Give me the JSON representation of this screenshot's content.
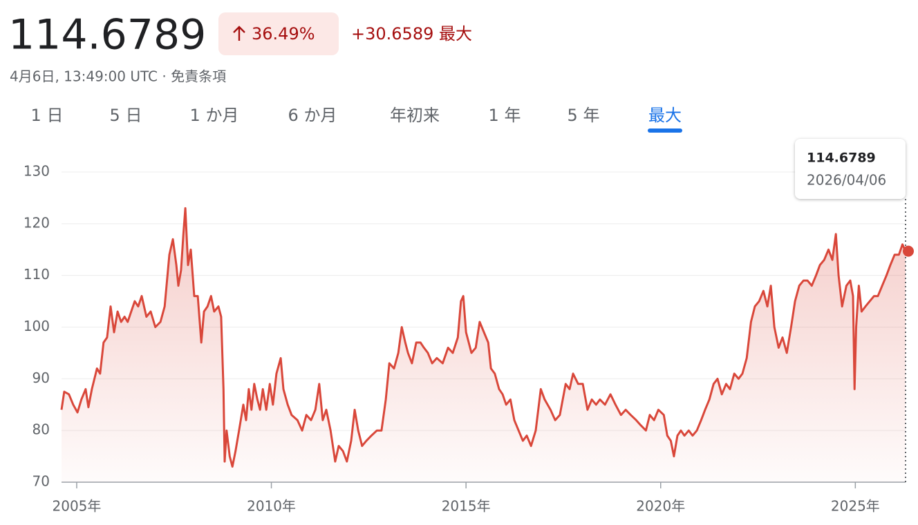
{
  "header": {
    "price": "114.6789",
    "change_percent": "36.49%",
    "change": "+30.6589",
    "period": "最大",
    "timestamp": "4月6日, 13:49:00 UTC · 免責条項"
  },
  "tabs": {
    "items": [
      "1 日",
      "5 日",
      "1 か月",
      "6 か月",
      "年初来",
      "1 年",
      "5 年",
      "最大"
    ],
    "active": 7
  },
  "chart_data": {
    "type": "line",
    "color": "#d9473a",
    "x": [
      2004.61,
      2004.68,
      2004.8,
      2004.91,
      2005.02,
      2005.12,
      2005.23,
      2005.3,
      2005.39,
      2005.52,
      2005.6,
      2005.69,
      2005.78,
      2005.87,
      2005.96,
      2006.05,
      2006.14,
      2006.23,
      2006.31,
      2006.4,
      2006.49,
      2006.58,
      2006.67,
      2006.79,
      2006.9,
      2007.02,
      2007.15,
      2007.26,
      2007.38,
      2007.47,
      2007.56,
      2007.61,
      2007.68,
      2007.74,
      2007.79,
      2007.86,
      2007.93,
      2008.02,
      2008.11,
      2008.2,
      2008.27,
      2008.36,
      2008.45,
      2008.53,
      2008.64,
      2008.71,
      2008.77,
      2008.8,
      2008.85,
      2008.93,
      2009.0,
      2009.08,
      2009.17,
      2009.28,
      2009.35,
      2009.42,
      2009.49,
      2009.56,
      2009.64,
      2009.71,
      2009.78,
      2009.87,
      2009.96,
      2010.04,
      2010.13,
      2010.24,
      2010.31,
      2010.42,
      2010.52,
      2010.67,
      2010.79,
      2010.9,
      2011.02,
      2011.13,
      2011.23,
      2011.32,
      2011.41,
      2011.52,
      2011.64,
      2011.73,
      2011.84,
      2011.94,
      2012.05,
      2012.14,
      2012.23,
      2012.33,
      2012.44,
      2012.57,
      2012.71,
      2012.83,
      2012.94,
      2013.03,
      2013.15,
      2013.26,
      2013.35,
      2013.44,
      2013.51,
      2013.61,
      2013.72,
      2013.83,
      2013.92,
      2014.02,
      2014.13,
      2014.25,
      2014.4,
      2014.54,
      2014.66,
      2014.79,
      2014.87,
      2014.93,
      2015.0,
      2015.07,
      2015.14,
      2015.25,
      2015.35,
      2015.46,
      2015.57,
      2015.64,
      2015.74,
      2015.85,
      2015.94,
      2016.03,
      2016.14,
      2016.24,
      2016.35,
      2016.46,
      2016.56,
      2016.67,
      2016.79,
      2016.92,
      2017.02,
      2017.17,
      2017.29,
      2017.41,
      2017.56,
      2017.66,
      2017.75,
      2017.88,
      2018.0,
      2018.12,
      2018.23,
      2018.34,
      2018.44,
      2018.57,
      2018.71,
      2018.84,
      2018.98,
      2019.1,
      2019.23,
      2019.37,
      2019.49,
      2019.62,
      2019.72,
      2019.83,
      2019.94,
      2020.08,
      2020.17,
      2020.26,
      2020.34,
      2020.43,
      2020.52,
      2020.61,
      2020.72,
      2020.82,
      2020.93,
      2021.04,
      2021.14,
      2021.25,
      2021.36,
      2021.46,
      2021.57,
      2021.68,
      2021.78,
      2021.89,
      2022.0,
      2022.1,
      2022.21,
      2022.32,
      2022.42,
      2022.53,
      2022.64,
      2022.74,
      2022.83,
      2022.92,
      2023.03,
      2023.13,
      2023.24,
      2023.35,
      2023.45,
      2023.56,
      2023.67,
      2023.77,
      2023.88,
      2023.99,
      2024.09,
      2024.2,
      2024.31,
      2024.41,
      2024.5,
      2024.57,
      2024.66,
      2024.77,
      2024.87,
      2024.94,
      2024.98,
      2025.02,
      2025.09,
      2025.16,
      2025.26,
      2025.37,
      2025.48,
      2025.58,
      2025.69,
      2025.8,
      2025.9,
      2026.01,
      2026.12,
      2026.21,
      2026.29
    ],
    "values": [
      84,
      87.5,
      87,
      85,
      83.5,
      86,
      88,
      84.5,
      88,
      92,
      91,
      97,
      98,
      104,
      99,
      103,
      101,
      102,
      101,
      103,
      105,
      104,
      106,
      102,
      103,
      100,
      101,
      104,
      114,
      117,
      112,
      108,
      111,
      118,
      123,
      112,
      115,
      106,
      106,
      97,
      103,
      104,
      106,
      103,
      104,
      102,
      88,
      74,
      80,
      75,
      73,
      76,
      80,
      85,
      82,
      88,
      84,
      89,
      86,
      84,
      88,
      84,
      89,
      85,
      91,
      94,
      88,
      85,
      83,
      82,
      80,
      83,
      82,
      84,
      89,
      82,
      84,
      80,
      74,
      77,
      76,
      74,
      78,
      84,
      80,
      77,
      78,
      79,
      80,
      80,
      86,
      93,
      92,
      95,
      100,
      97,
      95,
      93,
      97,
      97,
      96,
      95,
      93,
      94,
      93,
      96,
      95,
      98,
      105,
      106,
      99,
      97,
      95,
      96,
      101,
      99,
      97,
      92,
      91,
      88,
      87,
      85,
      86,
      82,
      80,
      78,
      79,
      77,
      80,
      88,
      86,
      84,
      82,
      83,
      89,
      88,
      91,
      89,
      89,
      84,
      86,
      85,
      86,
      85,
      87,
      85,
      83,
      84,
      83,
      82,
      81,
      80,
      83,
      82,
      84,
      83,
      79,
      78,
      75,
      79,
      80,
      79,
      80,
      79,
      80,
      82,
      84,
      86,
      89,
      90,
      87,
      89,
      88,
      91,
      90,
      91,
      94,
      101,
      104,
      105,
      107,
      104,
      108,
      100,
      96,
      98,
      95,
      100,
      105,
      108,
      109,
      109,
      108,
      110,
      112,
      113,
      115,
      113,
      118,
      110,
      104,
      108,
      109,
      106,
      88,
      100,
      108,
      103,
      104,
      105,
      106,
      106,
      108,
      110,
      112,
      114,
      114,
      116,
      114.6789
    ],
    "xlim": [
      2004.61,
      2026.29
    ],
    "xticks": [
      {
        "value": 2005,
        "label": "2005年"
      },
      {
        "value": 2010,
        "label": "2010年"
      },
      {
        "value": 2015,
        "label": "2015年"
      },
      {
        "value": 2020,
        "label": "2020年"
      },
      {
        "value": 2025,
        "label": "2025年"
      }
    ],
    "ylim": [
      70,
      130
    ],
    "yticks": [
      70,
      80,
      90,
      100,
      110,
      120,
      130
    ],
    "grid": true,
    "tooltip": {
      "value": "114.6789",
      "date": "2026/04/06"
    }
  }
}
